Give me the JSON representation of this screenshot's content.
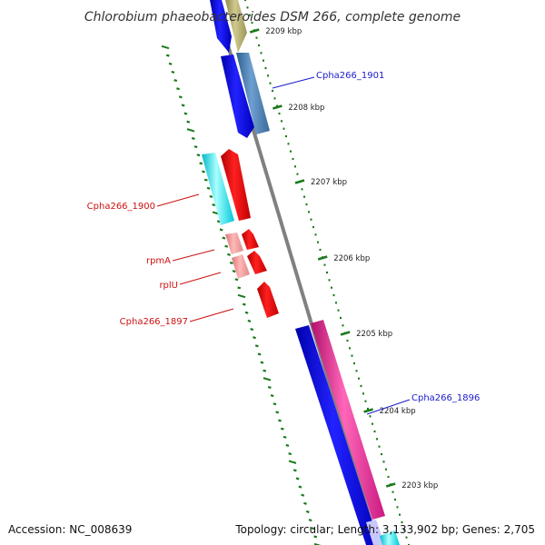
{
  "title": "Chlorobium phaeobacteroides DSM 266, complete genome",
  "footer": {
    "accession": "Accession: NC_008639",
    "topology": "Topology: circular; Length: 3,133,902 bp; Genes: 2,705"
  },
  "colors": {
    "backbone": "#808080",
    "tick": "#1a7a1a",
    "label_plus": "#1a1acc",
    "label_minus": "#cc1111"
  },
  "ruler": [
    {
      "label": "2209 kbp"
    },
    {
      "label": "2208 kbp"
    },
    {
      "label": "2207 kbp"
    },
    {
      "label": "2206 kbp"
    },
    {
      "label": "2205 kbp"
    },
    {
      "label": "2204 kbp"
    },
    {
      "label": "2203 kbp"
    }
  ],
  "gene_labels": [
    {
      "name": "Cpha266_1901",
      "strand": "plus"
    },
    {
      "name": "Cpha266_1900",
      "strand": "minus"
    },
    {
      "name": "rpmA",
      "strand": "minus"
    },
    {
      "name": "rplU",
      "strand": "minus"
    },
    {
      "name": "Cpha266_1897",
      "strand": "minus"
    },
    {
      "name": "Cpha266_1896",
      "strand": "plus"
    }
  ]
}
